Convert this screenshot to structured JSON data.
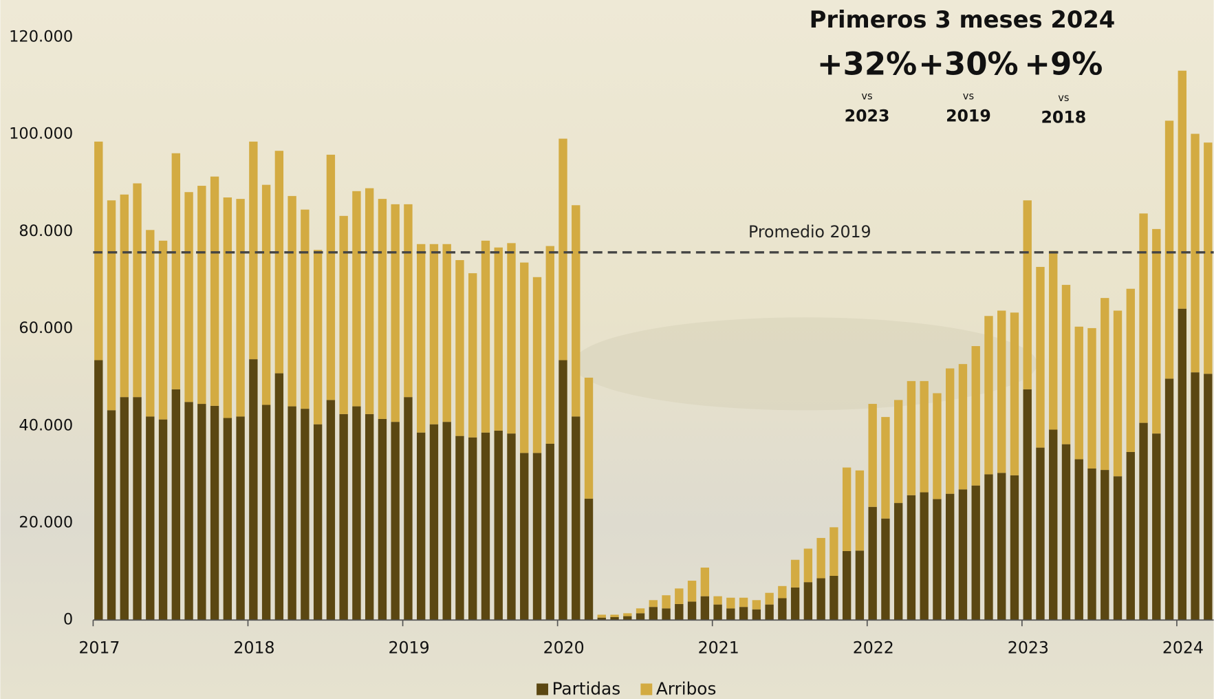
{
  "chart_data": {
    "type": "stacked-bar",
    "categories": [
      "2017",
      null,
      null,
      null,
      null,
      null,
      null,
      null,
      null,
      null,
      null,
      null,
      "2018",
      null,
      null,
      null,
      null,
      null,
      null,
      null,
      null,
      null,
      null,
      null,
      "2019",
      null,
      null,
      null,
      null,
      null,
      null,
      null,
      null,
      null,
      null,
      null,
      "2020",
      null,
      null,
      null,
      null,
      null,
      null,
      null,
      null,
      null,
      null,
      null,
      "2021",
      null,
      null,
      null,
      null,
      null,
      null,
      null,
      null,
      null,
      null,
      null,
      "2022",
      null,
      null,
      null,
      null,
      null,
      null,
      null,
      null,
      null,
      null,
      null,
      "2023",
      null,
      null,
      null,
      null,
      null,
      null,
      null,
      null,
      null,
      null,
      null,
      "2024",
      null,
      null
    ],
    "series": [
      {
        "name": "Partidas",
        "color": "#5b4712",
        "values": [
          53500,
          43200,
          45900,
          45900,
          41900,
          41300,
          47500,
          44900,
          44500,
          44100,
          41600,
          41900,
          53700,
          44300,
          50800,
          44000,
          43500,
          40300,
          45300,
          42400,
          44000,
          42400,
          41400,
          40800,
          45900,
          38600,
          40300,
          40800,
          37900,
          37600,
          38600,
          39000,
          38400,
          34400,
          34400,
          36300,
          53500,
          41900,
          25000,
          500,
          600,
          800,
          1400,
          2700,
          2400,
          3300,
          3800,
          4900,
          3200,
          2400,
          2700,
          2200,
          3200,
          4500,
          6700,
          7800,
          8600,
          9100,
          14200,
          14300,
          23300,
          20900,
          24100,
          25700,
          26300,
          24900,
          26000,
          26900,
          27700,
          30000,
          30300,
          29800,
          47500,
          35500,
          39200,
          36200,
          33100,
          31200,
          30900,
          29600,
          34600,
          40600,
          38400,
          49700,
          64100,
          51000,
          50700
        ]
      },
      {
        "name": "Arribos",
        "color": "#d3ab42",
        "values": [
          45000,
          43200,
          41700,
          44000,
          38400,
          36800,
          48600,
          43200,
          44900,
          47200,
          45400,
          44800,
          44800,
          45300,
          45800,
          43300,
          41000,
          35900,
          50500,
          40800,
          44300,
          46500,
          45300,
          44800,
          39700,
          38800,
          37100,
          36600,
          36200,
          33800,
          39500,
          37700,
          39200,
          39200,
          36200,
          40700,
          45600,
          43500,
          24900,
          600,
          500,
          600,
          1000,
          1400,
          2700,
          3200,
          4300,
          5900,
          1700,
          2200,
          1900,
          1900,
          2400,
          2500,
          5700,
          6900,
          8300,
          10000,
          17200,
          16500,
          21200,
          20900,
          21200,
          23500,
          22900,
          21800,
          25800,
          25800,
          28700,
          32600,
          33400,
          33500,
          38900,
          37200,
          36800,
          32800,
          27300,
          28900,
          35400,
          34100,
          33600,
          43100,
          42100,
          53100,
          49000,
          49100,
          47600
        ]
      }
    ],
    "ylim": [
      0,
      120000
    ],
    "yticks": [
      0,
      {
        "value": 20000,
        "label": "20.000"
      },
      {
        "value": 40000,
        "label": "40.000"
      },
      {
        "value": 60000,
        "label": "60.000"
      },
      {
        "value": 80000,
        "label": "80.000"
      },
      {
        "value": 100000,
        "label": "100.000"
      },
      {
        "value": 120000,
        "label": "120.000"
      }
    ],
    "reference_line": {
      "label": "Promedio 2019",
      "value": 75700
    },
    "annotation": {
      "title": "Primeros 3 meses 2024",
      "items": [
        {
          "change": "+32%",
          "vs": "vs",
          "year": "2023"
        },
        {
          "change": "+30%",
          "vs": "vs",
          "year": "2019"
        },
        {
          "change": "+9%",
          "vs": "vs",
          "year": "2018"
        }
      ]
    },
    "legend": "bottom"
  }
}
